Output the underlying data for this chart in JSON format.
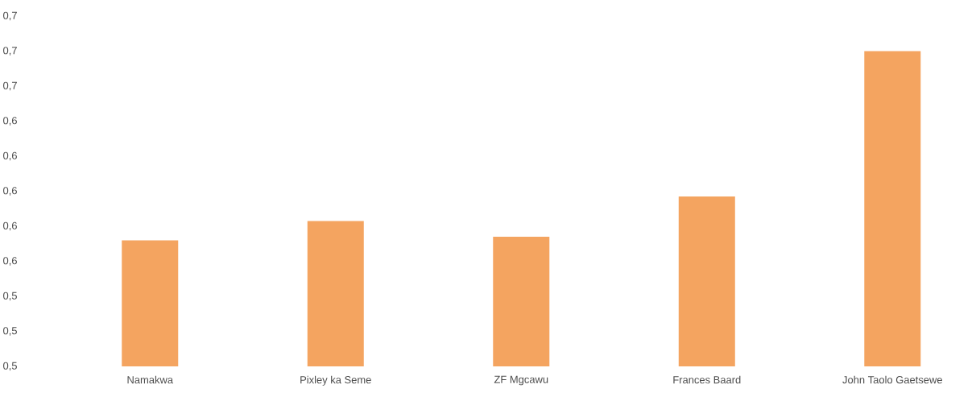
{
  "chart_data": {
    "type": "bar",
    "categories": [
      "Namakwa",
      "Pixley ka Seme",
      "ZF Mgcawu",
      "Frances Baard",
      "John Taolo Gaetsewe"
    ],
    "values": [
      0.572,
      0.583,
      0.574,
      0.597,
      0.68
    ],
    "color": "#f4a460",
    "ylim": [
      0.5,
      0.7
    ],
    "yticks": [
      {
        "value": 0.5,
        "label": "0,5"
      },
      {
        "value": 0.52,
        "label": "0,5"
      },
      {
        "value": 0.54,
        "label": "0,5"
      },
      {
        "value": 0.56,
        "label": "0,6"
      },
      {
        "value": 0.58,
        "label": "0,6"
      },
      {
        "value": 0.6,
        "label": "0,6"
      },
      {
        "value": 0.62,
        "label": "0,6"
      },
      {
        "value": 0.64,
        "label": "0,6"
      },
      {
        "value": 0.66,
        "label": "0,7"
      },
      {
        "value": 0.68,
        "label": "0,7"
      },
      {
        "value": 0.7,
        "label": "0,7"
      }
    ],
    "grid": false
  }
}
